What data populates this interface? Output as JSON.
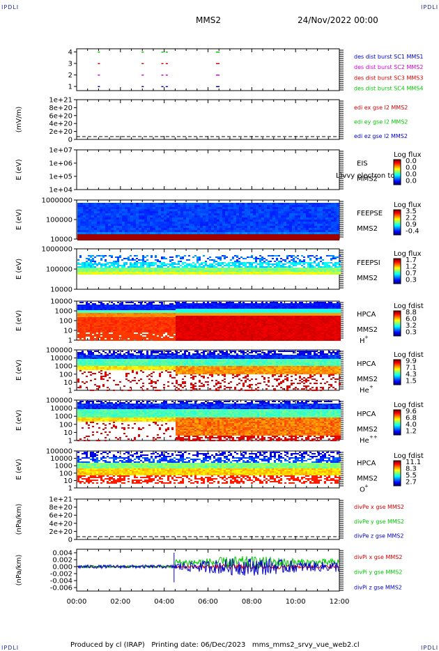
{
  "corner_labels": {
    "top_left": "IPDLI",
    "top_right": "IPDLI",
    "bottom_left": "IPDLI",
    "bottom_right": "IPDLI"
  },
  "header": {
    "spacecraft": "MMS2",
    "date": "24/Nov/2022 00:00"
  },
  "footer": {
    "text": "Produced by cl (IRAP)   Printing date: 06/Dec/2023   mms_mms2_srvy_vue_web2.cl"
  },
  "colors": {
    "blue": "#0000c8",
    "magenta": "#d400d4",
    "red": "#d40000",
    "green": "#00c800",
    "black": "#000000"
  },
  "chart_data": [
    {
      "type": "scatter",
      "panel": "burst",
      "yticks": [
        "1",
        "2",
        "3",
        "4"
      ],
      "legend": [
        {
          "label": "des dist burst SC1 MMS1",
          "color": "#0000c8"
        },
        {
          "label": "des dist burst SC2 MMS2",
          "color": "#d400d4"
        },
        {
          "label": "des dist burst SC3 MMS3",
          "color": "#d40000"
        },
        {
          "label": "des dist burst SC4 MMS4",
          "color": "#00c800"
        }
      ],
      "burst_times_hours": [
        1.0,
        3.0,
        3.9,
        4.1,
        6.4
      ]
    },
    {
      "type": "line",
      "panel": "edi",
      "ylabel": "(mV/m)",
      "yticks": [
        "0",
        "2e+20",
        "4e+20",
        "6e+20",
        "8e+20",
        "1e+21"
      ],
      "legend": [
        {
          "label": "edi ex gse l2 MMS2",
          "color": "#d40000"
        },
        {
          "label": "edi ey gse l2 MMS2",
          "color": "#00c800"
        },
        {
          "label": "edi ez gse l2 MMS2",
          "color": "#0000c8"
        }
      ]
    },
    {
      "type": "heatmap",
      "panel": "eis",
      "ylabel": "E (eV)",
      "yticks": [
        "1e+04",
        "1e+05",
        "1e+06",
        "1e+07"
      ],
      "instrument": [
        "EIS",
        "MMS2"
      ],
      "overlay": "L)vvy electron to",
      "cbar_title": "Log flux",
      "cbar_ticks": [
        "0.0",
        "0.0",
        "0.0",
        "0.0"
      ]
    },
    {
      "type": "heatmap",
      "panel": "feepse",
      "ylabel": "E (eV)",
      "yticks": [
        "10000",
        "100000",
        "1000000"
      ],
      "instrument": [
        "FEEPSE",
        "MMS2"
      ],
      "cbar_title": "Log flux",
      "cbar_ticks": [
        "3.5",
        "2.2",
        "0.9",
        "-0.4"
      ]
    },
    {
      "type": "heatmap",
      "panel": "feepsi",
      "ylabel": "E (eV)",
      "yticks": [
        "10000",
        "100000",
        "1000000"
      ],
      "instrument": [
        "FEEPSI",
        "MMS2"
      ],
      "cbar_title": "Log flux",
      "cbar_ticks": [
        "1.7",
        "1.2",
        "0.7",
        "0.3"
      ]
    },
    {
      "type": "heatmap",
      "panel": "hpca_h",
      "ylabel": "E (eV)",
      "yticks": [
        "1",
        "10",
        "100",
        "1000",
        "10000"
      ],
      "instrument": [
        "HPCA",
        "MMS2"
      ],
      "species": "H",
      "species_sup": "+",
      "cbar_title": "Log fdist",
      "cbar_ticks": [
        "8.8",
        "6.0",
        "3.2",
        "0.3"
      ]
    },
    {
      "type": "heatmap",
      "panel": "hpca_he",
      "ylabel": "E (eV)",
      "yticks": [
        "1",
        "10",
        "100",
        "1000",
        "10000",
        "100000"
      ],
      "instrument": [
        "HPCA",
        "MMS2"
      ],
      "species": "He",
      "species_sup": "+",
      "cbar_title": "Log fdist",
      "cbar_ticks": [
        "9.9",
        "7.1",
        "4.3",
        "1.5"
      ]
    },
    {
      "type": "heatmap",
      "panel": "hpca_hepp",
      "ylabel": "E (eV)",
      "yticks": [
        "1",
        "10",
        "100",
        "1000",
        "10000",
        "100000"
      ],
      "instrument": [
        "HPCA",
        "MMS2"
      ],
      "species": "He",
      "species_sup": "++",
      "cbar_title": "Log fdist",
      "cbar_ticks": [
        "9.6",
        "6.8",
        "4.0",
        "1.2"
      ]
    },
    {
      "type": "heatmap",
      "panel": "hpca_o",
      "ylabel": "E (eV)",
      "yticks": [
        "1",
        "10",
        "100",
        "1000",
        "10000",
        "100000"
      ],
      "instrument": [
        "HPCA",
        "MMS2"
      ],
      "species": "O",
      "species_sup": "+",
      "cbar_title": "Log fdist",
      "cbar_ticks": [
        "11.1",
        "8.3",
        "5.5",
        "2.7"
      ]
    },
    {
      "type": "line",
      "panel": "divpe",
      "ylabel": "(nPa/km)",
      "yticks": [
        "0",
        "2e+20",
        "4e+20",
        "6e+20",
        "8e+20",
        "1e+21"
      ],
      "legend": [
        {
          "label": "divPe x gse MMS2",
          "color": "#d40000"
        },
        {
          "label": "divPe y gse MMS2",
          "color": "#00c800"
        },
        {
          "label": "divPe z gse MMS2",
          "color": "#0000c8"
        }
      ]
    },
    {
      "type": "line",
      "panel": "divpi",
      "ylabel": "(nPa/km)",
      "yticks": [
        "-0.006",
        "-0.004",
        "-0.002",
        "0.000",
        "0.002",
        "0.004"
      ],
      "ylim": [
        -0.007,
        0.005
      ],
      "legend": [
        {
          "label": "divPi x gse MMS2",
          "color": "#d40000"
        },
        {
          "label": "divPi y gse MMS2",
          "color": "#00c800"
        },
        {
          "label": "divPi z gse MMS2",
          "color": "#0000c8"
        }
      ]
    }
  ],
  "time_axis": {
    "ticks": [
      "00:00",
      "02:00",
      "04:00",
      "06:00",
      "08:00",
      "10:00",
      "12:00"
    ],
    "range_hours": [
      0,
      12
    ]
  }
}
